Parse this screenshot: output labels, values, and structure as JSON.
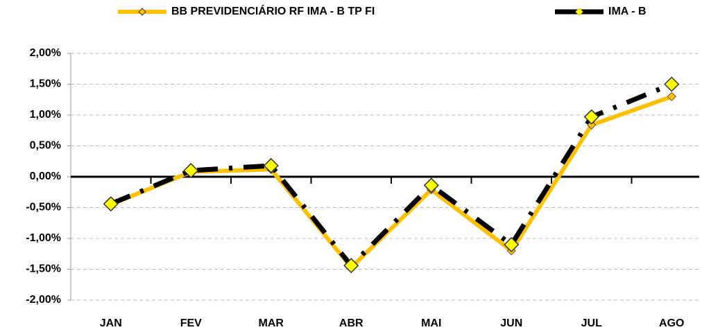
{
  "chart_data": {
    "type": "line",
    "categories": [
      "JAN",
      "FEV",
      "MAR",
      "ABR",
      "MAI",
      "JUN",
      "JUL",
      "AGO"
    ],
    "series": [
      {
        "name": "BB PREVIDENCIÁRIO RF IMA - B TP FI",
        "color": "#ffc000",
        "values": [
          -0.45,
          0.08,
          0.12,
          -1.47,
          -0.21,
          -1.2,
          0.84,
          1.3
        ]
      },
      {
        "name": "IMA - B",
        "color": "#000000",
        "values": [
          -0.44,
          0.1,
          0.18,
          -1.44,
          -0.14,
          -1.1,
          0.97,
          1.5
        ]
      }
    ],
    "ylim": [
      -2,
      2
    ],
    "yticks": [
      {
        "value": -2,
        "label": "-2,00%"
      },
      {
        "value": -1.5,
        "label": "-1,50%"
      },
      {
        "value": -1,
        "label": "-1,00%"
      },
      {
        "value": -0.5,
        "label": "-0,50%"
      },
      {
        "value": 0,
        "label": "0,00%"
      },
      {
        "value": 0.5,
        "label": "0,50%"
      },
      {
        "value": 1,
        "label": "1,00%"
      },
      {
        "value": 1.5,
        "label": "1,50%"
      },
      {
        "value": 2,
        "label": "2,00%"
      }
    ],
    "grid": true,
    "legend": "top"
  }
}
